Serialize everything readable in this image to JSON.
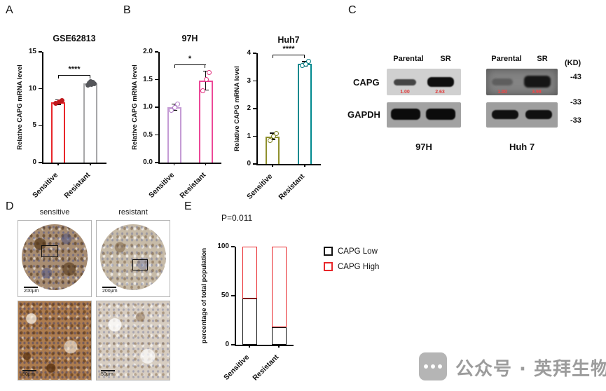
{
  "panels": {
    "a": "A",
    "b": "B",
    "c": "C",
    "d": "D",
    "e": "E"
  },
  "chart_data": [
    {
      "id": "A",
      "type": "bar",
      "title": "GSE62813",
      "ylabel": "Relative CAPG mRNA level",
      "ylim": [
        0,
        15
      ],
      "yticks": [
        0,
        5,
        10,
        15
      ],
      "ytick_labels": [
        "0",
        "5",
        "10",
        "15"
      ],
      "categories": [
        "Sensitive",
        "Resistant"
      ],
      "values": [
        8.2,
        10.7
      ],
      "errors": [
        0.3,
        0.2
      ],
      "points": [
        [
          8.0,
          8.2,
          8.4
        ],
        [
          10.45,
          10.6,
          10.7,
          10.75,
          10.85,
          10.95
        ]
      ],
      "bar_colors": [
        "#e8262a",
        "#a7a7a9"
      ],
      "point_colors": [
        "#c0181c",
        "#55565a"
      ],
      "point_fill": "solid",
      "significance": "****"
    },
    {
      "id": "B_97H",
      "type": "bar",
      "title": "97H",
      "ylabel": "Relative CAPG mRNA level",
      "ylim": [
        0,
        2
      ],
      "yticks": [
        0,
        0.5,
        1,
        1.5,
        2
      ],
      "ytick_labels": [
        "0.0",
        "0.5",
        "1.0",
        "1.5",
        "2.0"
      ],
      "categories": [
        "Sensitive",
        "Resistant"
      ],
      "values": [
        1.0,
        1.48
      ],
      "errors": [
        0.06,
        0.17
      ],
      "points": [
        [
          0.94,
          1.0,
          1.06
        ],
        [
          1.3,
          1.5,
          1.63
        ]
      ],
      "bar_colors": [
        "#c59bd5",
        "#ec4898"
      ],
      "point_colors": [
        "#b07cc6",
        "#e3307f"
      ],
      "point_fill": "open",
      "significance": "*"
    },
    {
      "id": "B_Huh7",
      "type": "bar",
      "title": "Huh7",
      "ylabel": "Relative CAPG mRNA level",
      "ylim": [
        0,
        4
      ],
      "yticks": [
        0,
        1,
        2,
        3,
        4
      ],
      "ytick_labels": [
        "0",
        "1",
        "2",
        "3",
        "4"
      ],
      "categories": [
        "Sensitive",
        "Resistant"
      ],
      "values": [
        1.0,
        3.62
      ],
      "errors": [
        0.12,
        0.07
      ],
      "points": [
        [
          0.86,
          1.0,
          1.1
        ],
        [
          3.55,
          3.62,
          3.7
        ]
      ],
      "bar_colors": [
        "#8f902c",
        "#00898f"
      ],
      "point_colors": [
        "#7d7e20",
        "#007a80"
      ],
      "point_fill": "open",
      "significance": "****"
    },
    {
      "id": "E",
      "type": "stacked_bar",
      "annotation": "P=0.011",
      "ylabel": "percentage of total population",
      "ylim": [
        0,
        100
      ],
      "yticks": [
        0,
        50,
        100
      ],
      "ytick_labels": [
        "0",
        "50",
        "100"
      ],
      "categories": [
        "Sensitive",
        "Resistant"
      ],
      "series": [
        {
          "name": "CAPG Low",
          "color": "#111111",
          "values": [
            47,
            18
          ]
        },
        {
          "name": "CAPG High",
          "color": "#e8262a",
          "values": [
            53,
            82
          ]
        }
      ],
      "legend_position": "right"
    }
  ],
  "western_blot": {
    "kd_label": "(KD)",
    "mw_markers": [
      "-43",
      "-33",
      "-33"
    ],
    "row_labels": [
      "CAPG",
      "GAPDH"
    ],
    "groups": [
      {
        "name": "97H",
        "lanes": [
          "Parental",
          "SR"
        ],
        "capg_quant": [
          "1.00",
          "2.63"
        ]
      },
      {
        "name": "Huh 7",
        "lanes": [
          "Parental",
          "SR"
        ],
        "capg_quant": [
          "1.00",
          "3.98"
        ]
      }
    ]
  },
  "ihc": {
    "column_labels": [
      "sensitive",
      "resistant"
    ],
    "scale_top": "200μm",
    "scale_bottom": "50μm"
  },
  "watermark": {
    "text": "公众号 · 英拜生物"
  }
}
